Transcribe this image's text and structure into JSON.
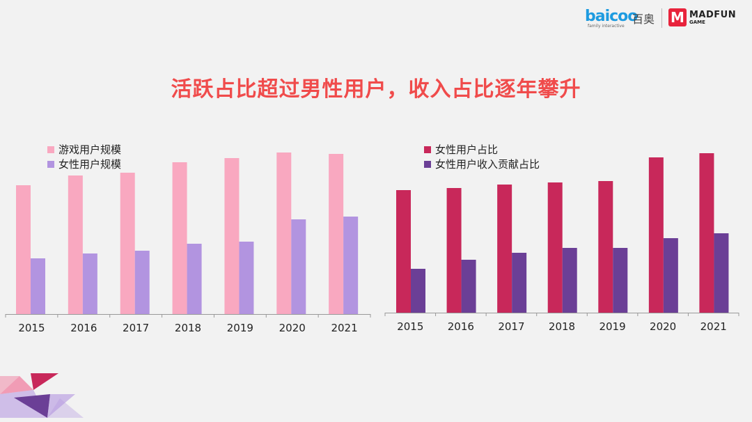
{
  "title": "活跃占比超过男性用户，收入占比逐年攀升",
  "logo": {
    "brand1": "baicoo",
    "brand1_cn": "百奥",
    "brand1_tagline": "family interactive",
    "brand2_mark": "M",
    "brand2": "MADFUN",
    "brand2_sub": "GAME"
  },
  "chart_data": [
    {
      "type": "bar",
      "title": "",
      "categories": [
        "2015",
        "2016",
        "2017",
        "2018",
        "2019",
        "2020",
        "2021"
      ],
      "series": [
        {
          "name": "游戏用户规模",
          "color": "#f9a8c0",
          "values": [
            185,
            199,
            203,
            218,
            224,
            232,
            230
          ]
        },
        {
          "name": "女性用户规模",
          "color": "#b294e0",
          "values": [
            80,
            87,
            91,
            101,
            104,
            136,
            140
          ]
        }
      ],
      "ylim": [
        0,
        250
      ],
      "grid": false,
      "legend": "top-left"
    },
    {
      "type": "bar",
      "title": "",
      "categories": [
        "2015",
        "2016",
        "2017",
        "2018",
        "2019",
        "2020",
        "2021"
      ],
      "series": [
        {
          "name": "女性用户占比",
          "color": "#c8285a",
          "values": [
            176,
            179,
            184,
            187,
            189,
            223,
            229
          ]
        },
        {
          "name": "女性用户收入贡献占比",
          "color": "#6b3f96",
          "values": [
            63,
            76,
            86,
            93,
            93,
            107,
            114
          ]
        }
      ],
      "ylim": [
        0,
        250
      ],
      "grid": false,
      "legend": "top-left"
    }
  ],
  "decor": {
    "pink": "#f07fa0",
    "magenta": "#c8285a",
    "purple": "#6b3f96",
    "lilac": "#b294e0"
  }
}
